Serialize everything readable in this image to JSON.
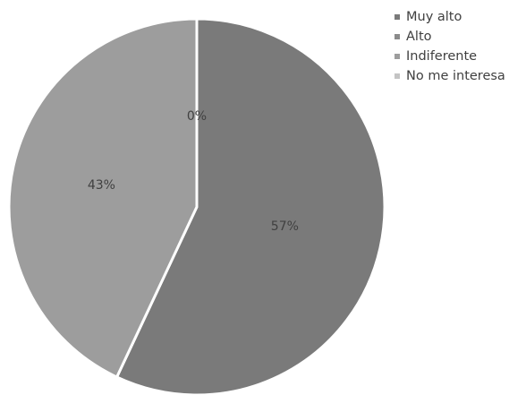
{
  "chart_data": {
    "type": "pie",
    "categories": [
      "Muy alto",
      "Alto",
      "Indiferente",
      "No me interesa"
    ],
    "values": [
      57,
      0,
      43,
      0
    ],
    "data_labels": [
      "57%",
      "0%",
      "43%",
      ""
    ],
    "colors": [
      "#7a7a7a",
      "#8b8b8b",
      "#9d9d9d",
      "#c4c4c4"
    ],
    "legend_position": "top-right",
    "start_angle": "12 o'clock",
    "direction": "clockwise"
  }
}
